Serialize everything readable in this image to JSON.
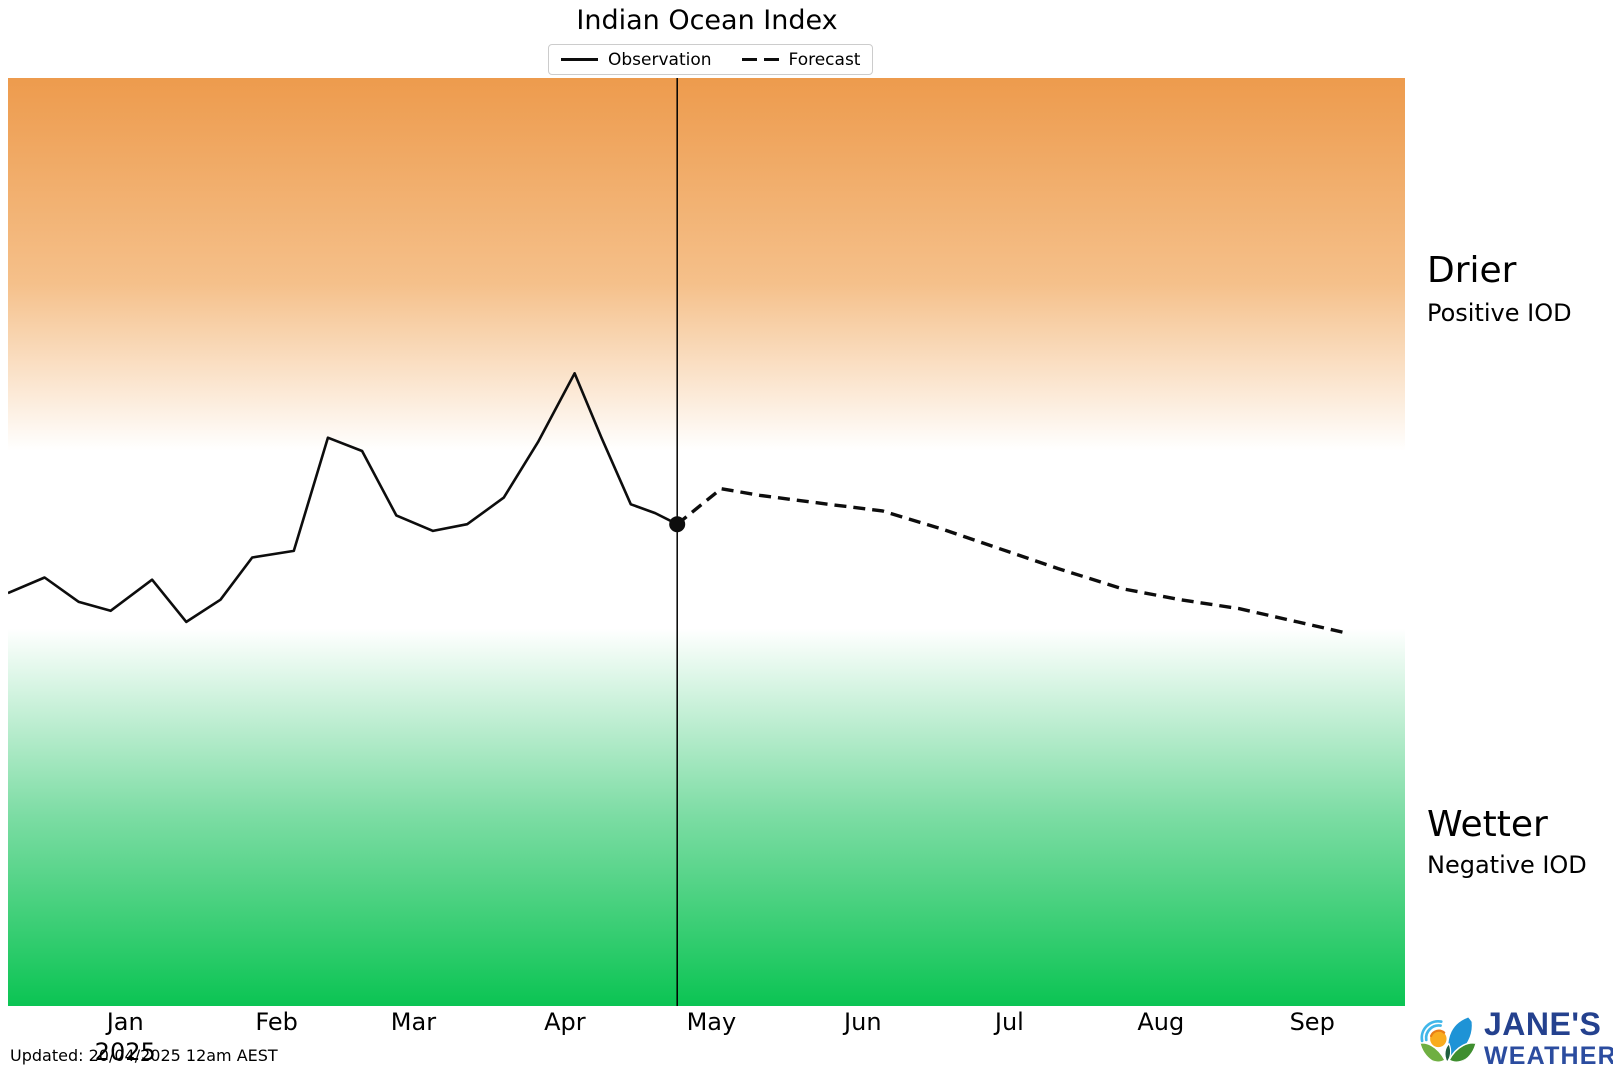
{
  "title": "Indian Ocean Index",
  "legend": {
    "observation_label": "Observation",
    "forecast_label": "Forecast"
  },
  "right_labels": {
    "drier_title": "Drier",
    "drier_sub": "Positive IOD",
    "wetter_title": "Wetter",
    "wetter_sub": "Negative IOD"
  },
  "footer": {
    "updated": "Updated: 20/04/2025 12am AEST"
  },
  "logo": {
    "line1": "JANE'S",
    "line2": "WEATHER"
  },
  "colors": {
    "positive_band_top": "#ED9B4D",
    "positive_band_mid": "#F5C08A",
    "negative_band_mid": "#7BDCA3",
    "negative_band_bottom": "#0BC453",
    "line": "#0d0d0d",
    "legend_border": "#cccccc",
    "logo_navy": "#24418E",
    "logo_navy_light": "#2B4C9F",
    "logo_blue": "#1E93D6",
    "logo_light_blue": "#41B7E9",
    "logo_orange": "#F9AC1E",
    "logo_orange_dark": "#E87E17",
    "logo_green_light": "#6FAF42",
    "logo_green_dark": "#3F8E2F"
  },
  "chart_data": {
    "type": "line",
    "title": "Indian Ocean Index",
    "xlabel": "",
    "ylabel": "",
    "x_axis_note": "months, late Dec 2024 through mid Sep 2025; day 0 = Jan 1 2025",
    "x_domain_days": [
      -24,
      262
    ],
    "ylim": [
      -2.1,
      2.08
    ],
    "positive_threshold": 0.4,
    "negative_threshold": -0.4,
    "grid": false,
    "y_tick_labels": "none",
    "legend_position": "top-center",
    "x_ticks": [
      {
        "label": "Jan",
        "day": 0
      },
      {
        "label": "Feb",
        "day": 31
      },
      {
        "label": "Mar",
        "day": 59
      },
      {
        "label": "Apr",
        "day": 90
      },
      {
        "label": "May",
        "day": 120
      },
      {
        "label": "Jun",
        "day": 151
      },
      {
        "label": "Jul",
        "day": 181
      },
      {
        "label": "Aug",
        "day": 212
      },
      {
        "label": "Sep",
        "day": 243
      }
    ],
    "year_label": {
      "label": "2025",
      "day": 0
    },
    "today_marker_day": 113,
    "series": [
      {
        "name": "Observation",
        "style": "solid",
        "days": [
          -24,
          -16.5,
          -9.5,
          -3,
          5.5,
          12.5,
          19.5,
          26,
          34.5,
          41.5,
          48.5,
          55.5,
          63,
          70,
          77.5,
          84.5,
          92,
          97.5,
          103.5,
          108.5,
          113
        ],
        "values": [
          -0.24,
          -0.17,
          -0.28,
          -0.32,
          -0.18,
          -0.37,
          -0.27,
          -0.08,
          -0.05,
          0.46,
          0.4,
          0.11,
          0.04,
          0.07,
          0.19,
          0.44,
          0.75,
          0.46,
          0.16,
          0.12,
          0.07
        ]
      },
      {
        "name": "Forecast",
        "style": "dashed",
        "days": [
          113,
          122,
          130,
          144,
          155,
          167,
          179,
          191,
          204,
          216,
          228,
          240,
          250
        ],
        "values": [
          0.07,
          0.23,
          0.2,
          0.16,
          0.13,
          0.05,
          -0.04,
          -0.13,
          -0.22,
          -0.27,
          -0.31,
          -0.37,
          -0.42
        ]
      }
    ]
  }
}
